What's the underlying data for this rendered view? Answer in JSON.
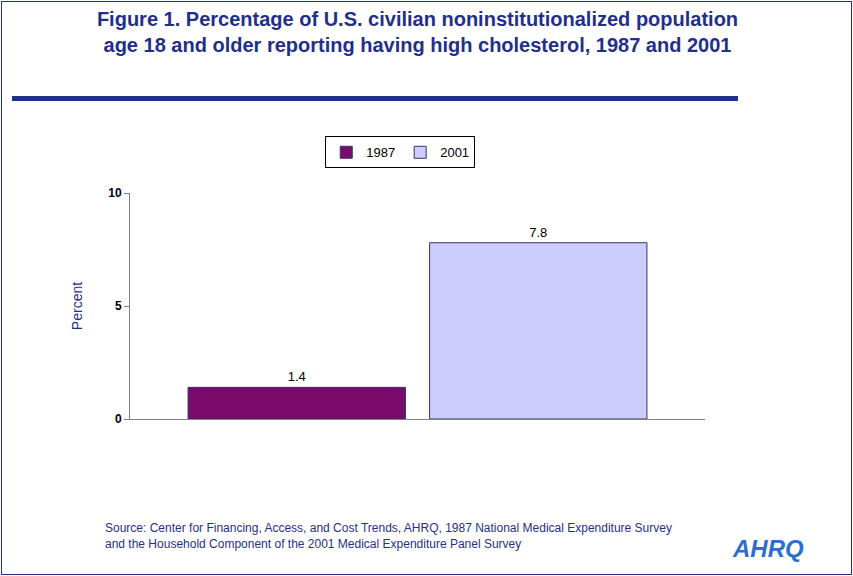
{
  "chart_data": {
    "type": "bar",
    "title": "Figure 1. Percentage of U.S. civilian noninstitutionalized population age 18 and older reporting having high cholesterol, 1987 and 2001",
    "y_label": "Percent",
    "categories": [
      null
    ],
    "series": [
      {
        "name": "1987",
        "color": "#7a0a6c",
        "values": [
          1.4
        ]
      },
      {
        "name": "2001",
        "color": "#ccccff",
        "values": [
          7.8
        ]
      }
    ],
    "ylim": [
      0,
      10
    ],
    "yticks": [
      0,
      5,
      10
    ],
    "grid": false,
    "legend": "top",
    "data_labels": true,
    "tick_labels": "y",
    "source": [
      "Source: Center for Financing, Access, and Cost Trends, AHRQ, 1987 National Medical Expenditure Survey",
      "and the Household Component of the 2001 Medical Expenditure Panel Survey"
    ],
    "logo": "AHRQ"
  }
}
